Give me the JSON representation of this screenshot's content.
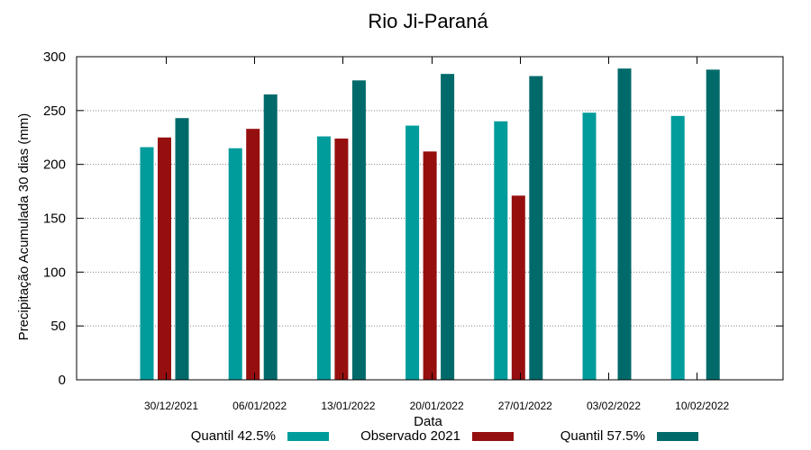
{
  "chart_data": {
    "type": "bar",
    "title": "Rio Ji-Paraná",
    "xlabel": "Data",
    "ylabel": "Precipitação Acumulada 30 dias (mm)",
    "ylim": [
      0,
      300
    ],
    "yticks": [
      0,
      50,
      100,
      150,
      200,
      250,
      300
    ],
    "grid": true,
    "legend_position": "bottom",
    "categories": [
      "30/12/2021",
      "06/01/2022",
      "13/01/2022",
      "20/01/2022",
      "27/01/2022",
      "03/02/2022",
      "10/02/2022"
    ],
    "series": [
      {
        "name": "Quantil 42.5%",
        "color": "#009b9b",
        "values": [
          216,
          215,
          226,
          236,
          240,
          248,
          245
        ]
      },
      {
        "name": "Observado 2021",
        "color": "#960f0f",
        "values": [
          225,
          233,
          224,
          212,
          171,
          null,
          null
        ]
      },
      {
        "name": "Quantil 57.5%",
        "color": "#006a6a",
        "values": [
          243,
          265,
          278,
          284,
          282,
          289,
          288
        ]
      }
    ]
  }
}
